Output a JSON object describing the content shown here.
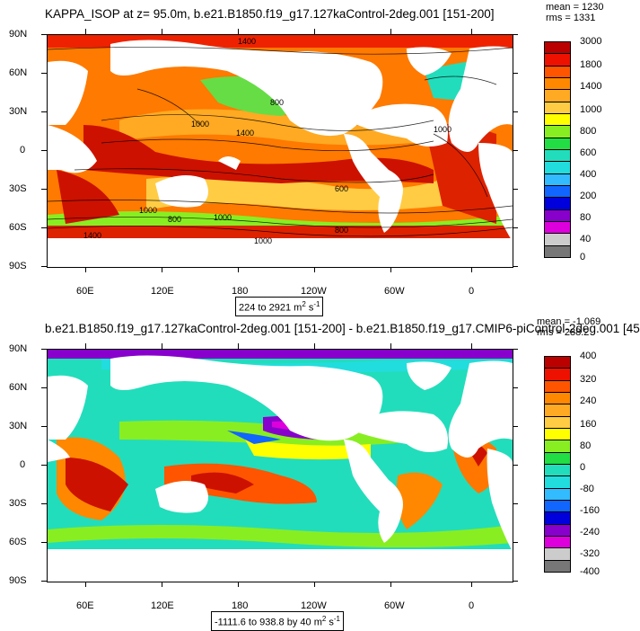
{
  "top": {
    "title": "KAPPA_ISOP at z=  95.0m, b.e21.B1850.f19_g17.127kaControl-2deg.001 [151-200]",
    "stats_mean": "mean = 1230",
    "stats_rms": "rms = 1331",
    "range_text": "224 to 2921 m",
    "range_unit_sup1": "2",
    "range_unit_tail": " s",
    "range_unit_sup2": "-1",
    "lat_labels": [
      "90N",
      "60N",
      "30N",
      "0",
      "30S",
      "60S",
      "90S"
    ],
    "lon_labels": [
      "60E",
      "120E",
      "180",
      "120W",
      "60W",
      "0"
    ],
    "contour_labels": [
      "1400",
      "1000",
      "800",
      "1400",
      "1000",
      "1000",
      "800",
      "1400",
      "1000",
      "800",
      "600",
      "1000"
    ],
    "colorbar_labels": [
      "3000",
      "1800",
      "1400",
      "1000",
      "800",
      "600",
      "400",
      "200",
      "80",
      "40",
      "0"
    ],
    "colorbar_colors": [
      "#bb0000",
      "#ee1100",
      "#ff5500",
      "#ff8800",
      "#ffaa22",
      "#ffcc44",
      "#ffff00",
      "#88ee22",
      "#22dd44",
      "#22ddbb",
      "#22dddd",
      "#33bbff",
      "#1166ff",
      "#0000dd",
      "#8800cc",
      "#dd00dd",
      "#cccccc",
      "#777777"
    ]
  },
  "bottom": {
    "title": "b.e21.B1850.f19_g17.127kaControl-2deg.001 [151-200] - b.e21.B1850.f19_g17.CMIP6-piControl-2deg.001 [45",
    "stats_mean": "mean = -1.069",
    "stats_rms": "rms = 288.2",
    "range_text": "-1111.6 to 938.8 by 40 m",
    "range_unit_sup1": "2",
    "range_unit_tail": " s",
    "range_unit_sup2": "-1",
    "lat_labels": [
      "90N",
      "60N",
      "30N",
      "0",
      "30S",
      "60S",
      "90S"
    ],
    "lon_labels": [
      "60E",
      "120E",
      "180",
      "120W",
      "60W",
      "0"
    ],
    "colorbar_labels": [
      "400",
      "320",
      "240",
      "160",
      "80",
      "0",
      "-80",
      "-160",
      "-240",
      "-320",
      "-400"
    ],
    "colorbar_colors": [
      "#bb0000",
      "#ee1100",
      "#ff5500",
      "#ff8800",
      "#ffaa22",
      "#ffcc44",
      "#ffff00",
      "#88ee22",
      "#22dd44",
      "#22ddbb",
      "#22dddd",
      "#33bbff",
      "#1166ff",
      "#0000dd",
      "#8800cc",
      "#dd00dd",
      "#cccccc",
      "#777777"
    ]
  }
}
